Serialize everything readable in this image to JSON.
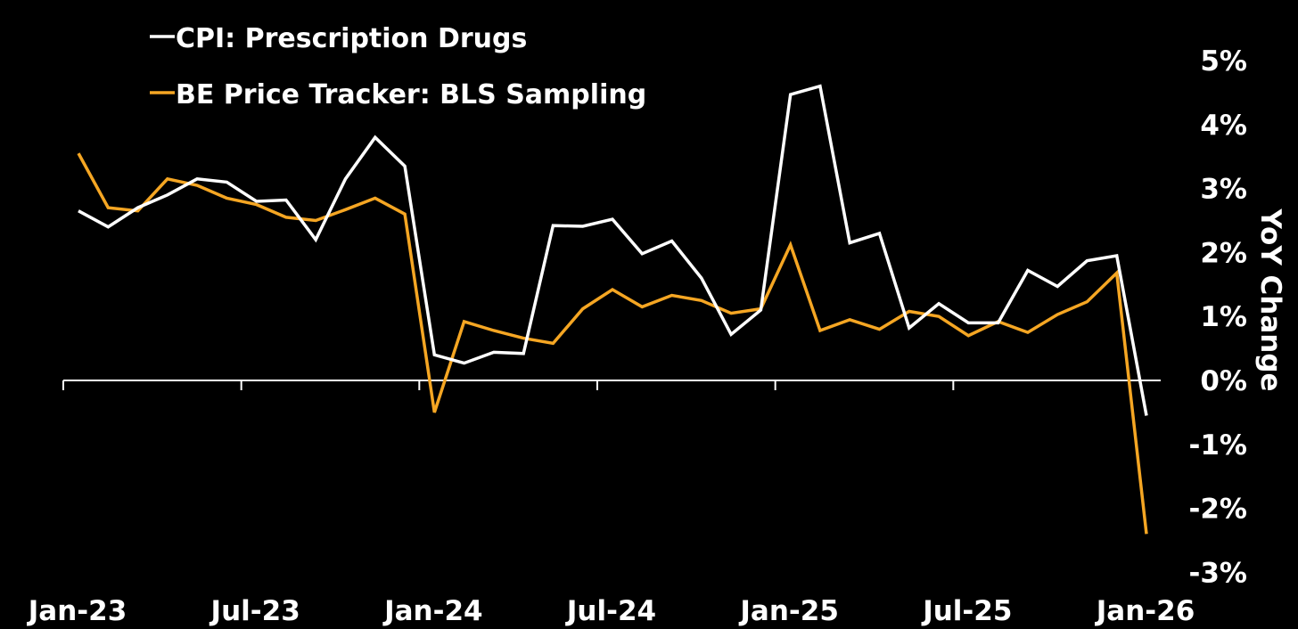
{
  "chart_data": {
    "type": "line",
    "ylabel": "YoY Change",
    "ylim": [
      -3,
      5
    ],
    "y_ticks": [
      "5%",
      "4%",
      "3%",
      "2%",
      "1%",
      "0%",
      "-1%",
      "-2%",
      "-3%"
    ],
    "x_ticks": [
      "Jan-23",
      "Jul-23",
      "Jan-24",
      "Jul-24",
      "Jan-25",
      "Jul-25",
      "Jan-26"
    ],
    "x": [
      "2023-01",
      "2023-02",
      "2023-03",
      "2023-04",
      "2023-05",
      "2023-06",
      "2023-07",
      "2023-08",
      "2023-09",
      "2023-10",
      "2023-11",
      "2023-12",
      "2024-01",
      "2024-02",
      "2024-03",
      "2024-04",
      "2024-05",
      "2024-06",
      "2024-07",
      "2024-08",
      "2024-09",
      "2024-10",
      "2024-11",
      "2024-12",
      "2025-01",
      "2025-02",
      "2025-03",
      "2025-04",
      "2025-05",
      "2025-06",
      "2025-07",
      "2025-08",
      "2025-09",
      "2025-10",
      "2025-11",
      "2025-12",
      "2026-01"
    ],
    "legend_position": "top-left",
    "grid": false,
    "series": [
      {
        "name": "CPI: Prescription Drugs",
        "color": "#ffffff",
        "values": [
          2.65,
          2.4,
          2.7,
          2.9,
          3.15,
          3.1,
          2.8,
          2.82,
          2.2,
          3.15,
          3.8,
          3.35,
          0.4,
          0.27,
          0.44,
          0.42,
          2.42,
          2.41,
          2.52,
          1.98,
          2.18,
          1.6,
          0.72,
          1.1,
          4.47,
          4.6,
          2.15,
          2.3,
          0.82,
          1.2,
          0.9,
          0.9,
          1.72,
          1.47,
          1.87,
          1.95,
          -0.55
        ]
      },
      {
        "name": "BE Price Tracker: BLS Sampling",
        "color": "#f5a623",
        "values": [
          3.55,
          2.7,
          2.65,
          3.15,
          3.05,
          2.85,
          2.75,
          2.55,
          2.5,
          2.67,
          2.85,
          2.6,
          -0.5,
          0.92,
          0.78,
          0.66,
          0.58,
          1.12,
          1.42,
          1.15,
          1.33,
          1.25,
          1.05,
          1.12,
          2.12,
          0.78,
          0.95,
          0.8,
          1.08,
          1.0,
          0.7,
          0.92,
          0.75,
          1.03,
          1.23,
          1.68,
          -2.4
        ]
      }
    ]
  }
}
